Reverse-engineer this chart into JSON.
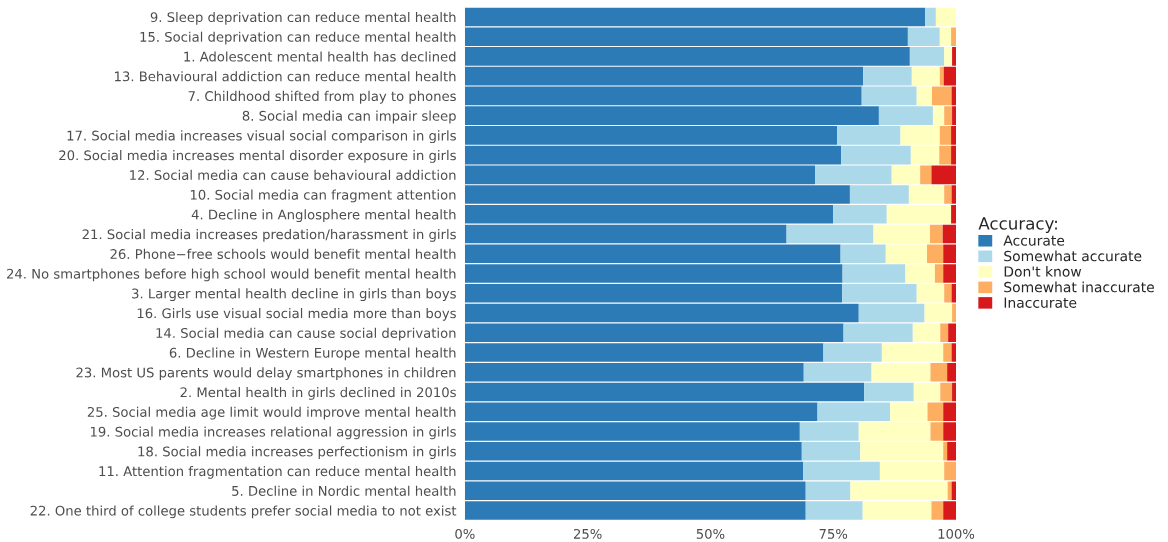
{
  "chart_data": {
    "type": "bar",
    "orientation": "horizontal",
    "stacked": true,
    "legend_title": "Accuracy:",
    "legend": "right",
    "categories": [
      "9. Sleep deprivation can reduce mental health",
      "15. Social deprivation can reduce mental health",
      "1. Adolescent mental health has declined",
      "13. Behavioural addiction can reduce mental health",
      "7. Childhood shifted from play to phones",
      "8. Social media can impair sleep",
      "17. Social media increases visual social comparison in girls",
      "20. Social media increases mental disorder exposure in girls",
      "12. Social media can cause behavioural addiction",
      "10. Social media can fragment attention",
      "4. Decline in Anglosphere mental health",
      "21. Social media increases predation/harassment in girls",
      "26. Phone−free schools would benefit mental health",
      "24. No smartphones before high school would benefit mental health",
      "3. Larger mental health decline in girls than boys",
      "16. Girls use visual social media more than boys",
      "14. Social media can cause social deprivation",
      "6. Decline in Western Europe mental health",
      "23. Most US parents would delay smartphones in children",
      "2. Mental health in girls declined in 2010s",
      "25. Social media age limit would improve mental health",
      "19. Social media increases relational aggression in girls",
      "18. Social media increases perfectionism in girls",
      "11. Attention fragmentation can reduce mental health",
      "5. Decline in Nordic mental health",
      "22. One third of college students prefer social media to not exist"
    ],
    "series": [
      {
        "name": "Accurate",
        "color": "#2c7bb6",
        "values": [
          93.7,
          90.2,
          90.6,
          81.1,
          80.8,
          84.3,
          75.8,
          76.6,
          71.3,
          78.4,
          75.0,
          65.5,
          76.5,
          76.9,
          76.8,
          80.2,
          77.1,
          73.0,
          69.0,
          81.3,
          71.8,
          68.2,
          68.6,
          68.9,
          69.4,
          69.4
        ]
      },
      {
        "name": "Somewhat accurate",
        "color": "#abd9e9",
        "values": [
          2.2,
          6.5,
          7.0,
          9.9,
          11.2,
          11.0,
          12.9,
          14.2,
          15.6,
          12.0,
          10.9,
          17.7,
          9.2,
          12.8,
          15.2,
          13.4,
          14.1,
          11.9,
          13.8,
          10.1,
          14.8,
          12.0,
          11.9,
          15.6,
          9.1,
          11.6
        ]
      },
      {
        "name": "Don't know",
        "color": "#ffffbf",
        "values": [
          4.1,
          2.3,
          1.6,
          5.7,
          3.1,
          2.3,
          8.0,
          5.8,
          5.8,
          7.2,
          13.1,
          11.5,
          8.4,
          6.0,
          5.6,
          5.6,
          5.6,
          12.5,
          12.0,
          5.4,
          7.6,
          14.6,
          16.9,
          13.1,
          19.8,
          14.0
        ]
      },
      {
        "name": "Somewhat inaccurate",
        "color": "#fdae61",
        "values": [
          null,
          1.0,
          null,
          0.8,
          4.0,
          1.6,
          2.3,
          2.4,
          2.3,
          1.5,
          0,
          2.6,
          3.3,
          1.7,
          1.5,
          0.8,
          1.6,
          1.7,
          3.4,
          2.4,
          3.2,
          2.6,
          0.8,
          2.4,
          0.8,
          2.4
        ]
      },
      {
        "name": "Inaccurate",
        "color": "#d7191c",
        "values": [
          null,
          null,
          0.8,
          2.5,
          0.9,
          0.8,
          1.0,
          1.0,
          5.0,
          0.9,
          1.0,
          2.7,
          2.6,
          2.6,
          0.9,
          null,
          1.6,
          0.9,
          1.8,
          0.8,
          2.6,
          2.6,
          1.8,
          null,
          0.9,
          2.6
        ]
      }
    ],
    "xlim": [
      0,
      100
    ],
    "xticks": [
      {
        "value": 0,
        "label": "0%"
      },
      {
        "value": 25,
        "label": "25%"
      },
      {
        "value": 50,
        "label": "50%"
      },
      {
        "value": 75,
        "label": "75%"
      },
      {
        "value": 100,
        "label": "100%"
      }
    ],
    "grid": false
  }
}
